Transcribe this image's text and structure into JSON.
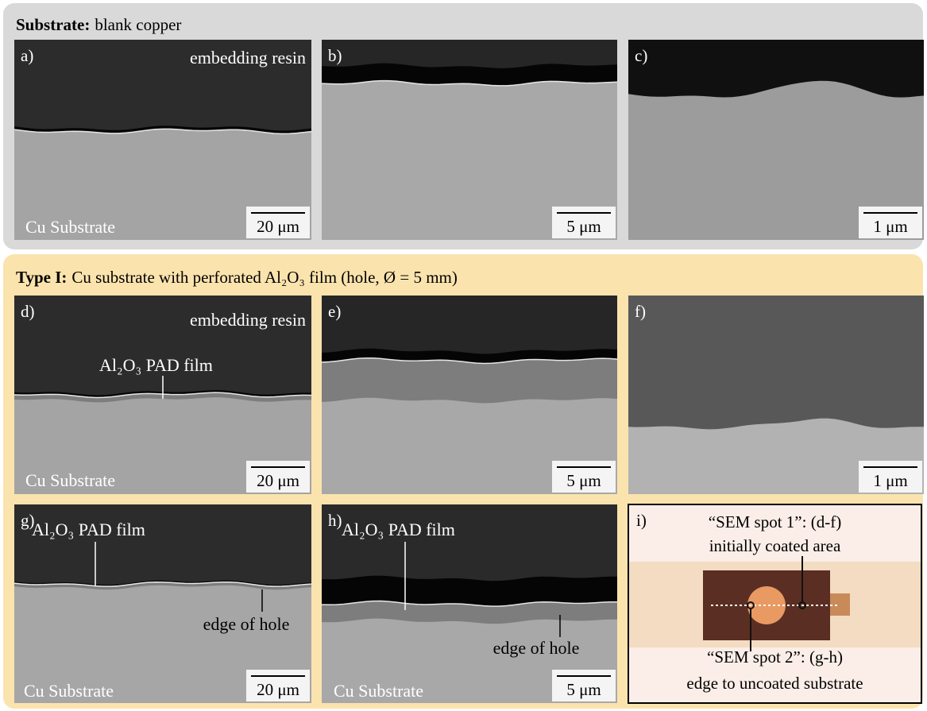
{
  "sections": [
    {
      "heading": {
        "label": "Substrate:",
        "text": "blank copper"
      },
      "panels": [
        {
          "letter": "a)",
          "labels": [
            "embedding resin",
            "Cu Substrate"
          ],
          "scale_bar": "20 μm"
        },
        {
          "letter": "b)",
          "labels": [],
          "scale_bar": "5 μm"
        },
        {
          "letter": "c)",
          "labels": [],
          "scale_bar": "1 μm"
        }
      ]
    },
    {
      "heading": {
        "label": "Type I:",
        "text": "Cu substrate with perforated Al₂O₃ film (hole, Ø = 5 mm)"
      },
      "panels": [
        {
          "letter": "d)",
          "labels": [
            "embedding resin",
            "Al₂O₃ PAD film",
            "Cu Substrate"
          ],
          "scale_bar": "20 μm"
        },
        {
          "letter": "e)",
          "labels": [],
          "scale_bar": "5 μm"
        },
        {
          "letter": "f)",
          "labels": [],
          "scale_bar": "1 μm"
        },
        {
          "letter": "g)",
          "labels": [
            "Al₂O₃ PAD film",
            "edge of hole",
            "Cu Substrate"
          ],
          "scale_bar": "20 μm"
        },
        {
          "letter": "h)",
          "labels": [
            "Al₂O₃ PAD film",
            "edge of hole",
            "Cu Substrate"
          ],
          "scale_bar": "5 μm"
        },
        {
          "letter": "i)",
          "labels": [
            "“SEM spot 1”: (d-f)",
            "initially coated area",
            "“SEM spot 2”: (g-h)",
            "edge to uncoated substrate"
          ]
        }
      ]
    }
  ]
}
